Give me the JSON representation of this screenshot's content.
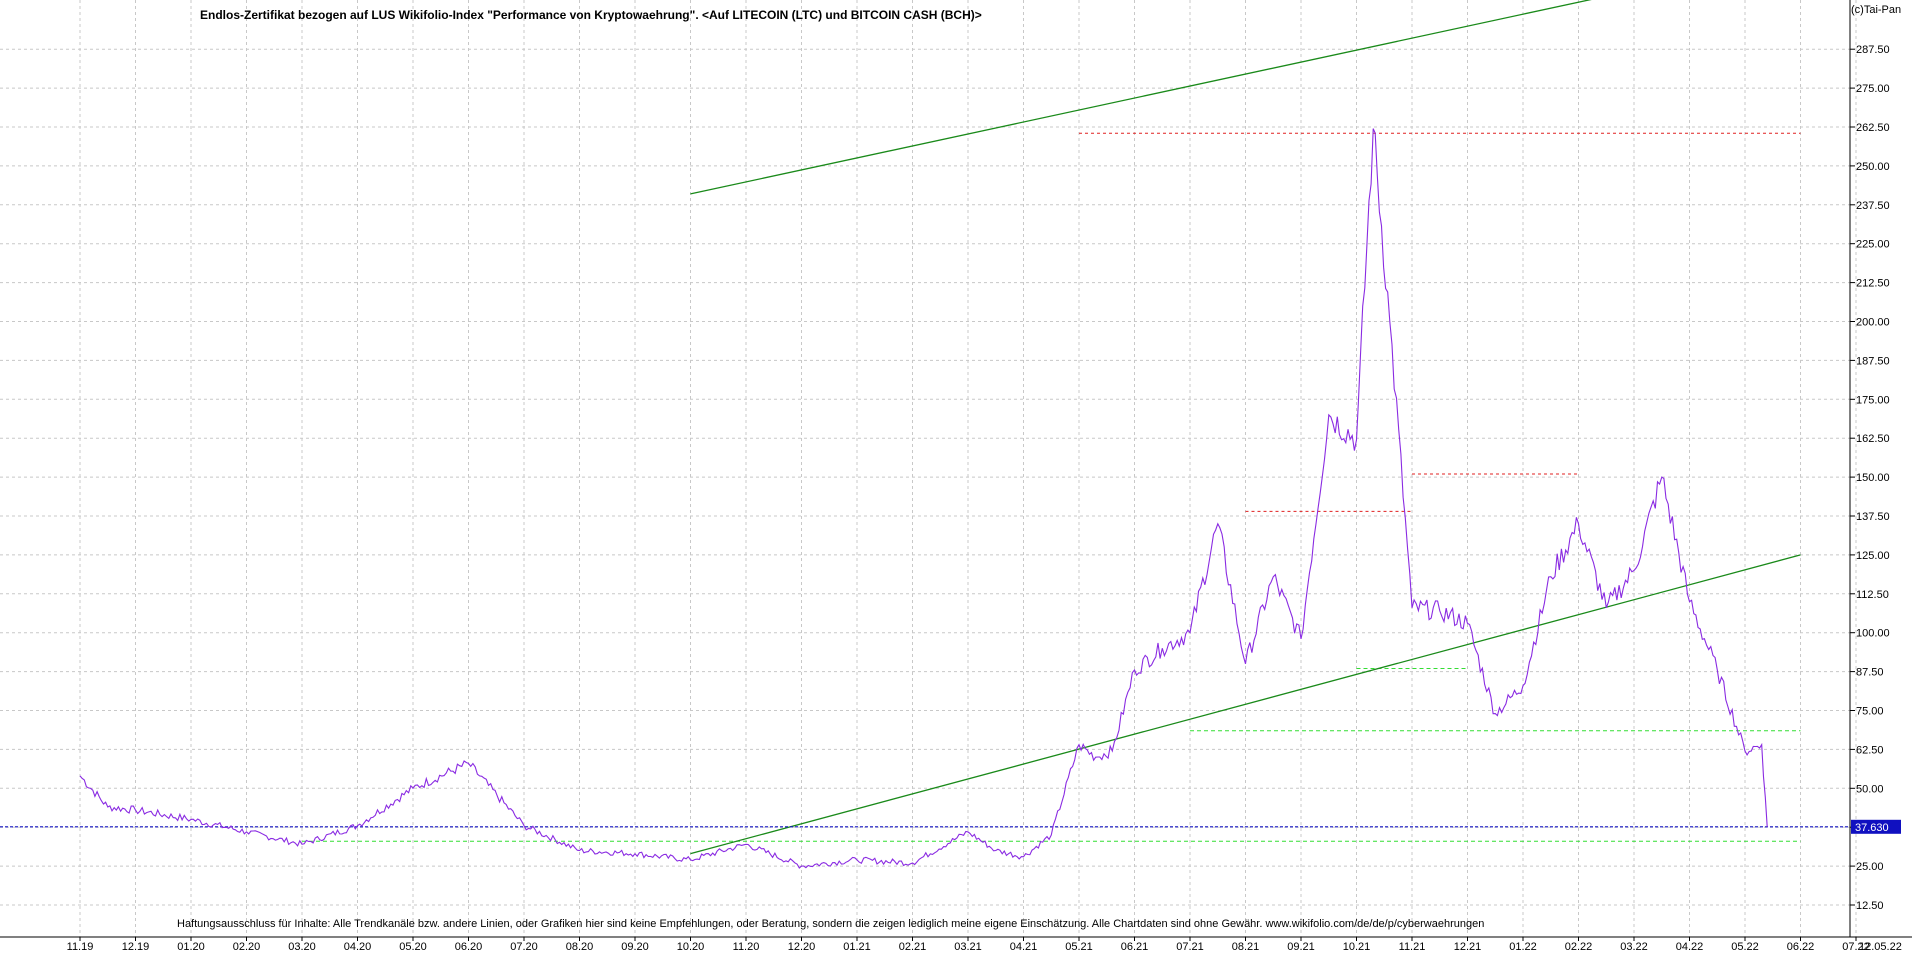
{
  "chart_data": {
    "type": "line",
    "title": "Endlos-Zertifikat bezogen auf LUS Wikifolio-Index \"Performance von Kryptowaehrung\". <Auf LITECOIN (LTC) und BITCOIN CASH (BCH)>",
    "copyright": "(c)Tai-Pan",
    "disclaimer": "Haftungsausschluss für Inhalte: Alle Trendkanäle bzw. andere Linien, oder Grafiken hier sind keine Empfehlungen, oder Beratung, sondern die zeigen lediglich meine eigene Einschätzung. Alle Chartdaten sind ohne Gewähr.  www.wikifolio.com/de/de/p/cyberwaehrungen",
    "last_value_label": "37.630",
    "last_value": 37.63,
    "ylim": [
      12.5,
      300
    ],
    "y_ticks": [
      "12.50",
      "25.00",
      "37.50",
      "50.00",
      "62.50",
      "75.00",
      "87.50",
      "100.00",
      "112.50",
      "125.00",
      "137.50",
      "150.00",
      "162.50",
      "175.00",
      "187.50",
      "200.00",
      "212.50",
      "225.00",
      "237.50",
      "250.00",
      "262.50",
      "275.00",
      "287.50"
    ],
    "x_ticks": [
      "11.19",
      "12.19",
      "01.20",
      "02.20",
      "03.20",
      "04.20",
      "05.20",
      "06.20",
      "07.20",
      "08.20",
      "09.20",
      "10.20",
      "11.20",
      "12.20",
      "01.21",
      "02.21",
      "03.21",
      "04.21",
      "05.21",
      "06.21",
      "07.21",
      "08.21",
      "09.21",
      "10.21",
      "11.21",
      "12.21",
      "01.22",
      "02.22",
      "03.22",
      "04.22",
      "05.22",
      "06.22",
      "07.22",
      "12.05.22"
    ],
    "series": [
      {
        "color": "#8a2be2",
        "x": [
          0,
          0.5,
          1,
          2,
          3,
          4,
          5,
          6,
          7,
          8,
          9,
          10,
          11,
          12,
          13,
          14,
          15,
          16,
          16.5,
          17,
          17.5,
          18,
          18.3,
          18.6,
          19,
          19.5,
          20,
          20.5,
          21,
          21.5,
          22,
          22.5,
          23,
          23.3,
          23.6,
          24,
          24.5,
          25,
          25.5,
          26,
          26.5,
          27,
          27.5,
          28,
          28.5,
          29,
          29.5,
          30,
          30.3,
          30.4
        ],
        "y": [
          54,
          44,
          43,
          40,
          36,
          32,
          38,
          50,
          58,
          38,
          30,
          29,
          27,
          32,
          25,
          27,
          26,
          36,
          30,
          28,
          35,
          64,
          60,
          62,
          88,
          95,
          100,
          135,
          90,
          118,
          98,
          170,
          162,
          262,
          200,
          108,
          107,
          103,
          74,
          83,
          118,
          135,
          108,
          120,
          150,
          110,
          88,
          62,
          64,
          37.63
        ]
      }
    ],
    "overlays": {
      "green_lines": [
        {
          "from": [
            "10.20",
            29
          ],
          "to": [
            "06.22",
            125
          ]
        },
        {
          "from": [
            "10.20",
            241
          ],
          "to": [
            "06.22",
            318
          ]
        }
      ],
      "red_dashed_levels": [
        {
          "y": 260.5,
          "from": "05.21",
          "to": "06.22"
        },
        {
          "y": 151,
          "from": "11.21",
          "to": "02.22"
        },
        {
          "y": 139,
          "from": "08.21",
          "to": "11.21"
        }
      ],
      "lime_dashed_levels": [
        {
          "y": 88.5,
          "from": "10.21",
          "to": "12.21"
        },
        {
          "y": 68.5,
          "from": "07.21",
          "to": "06.22"
        },
        {
          "y": 33,
          "from": "03.20",
          "to": "06.22"
        }
      ],
      "blue_dashed_level": {
        "y": 37.63
      }
    },
    "grid": true,
    "legend": "none"
  }
}
